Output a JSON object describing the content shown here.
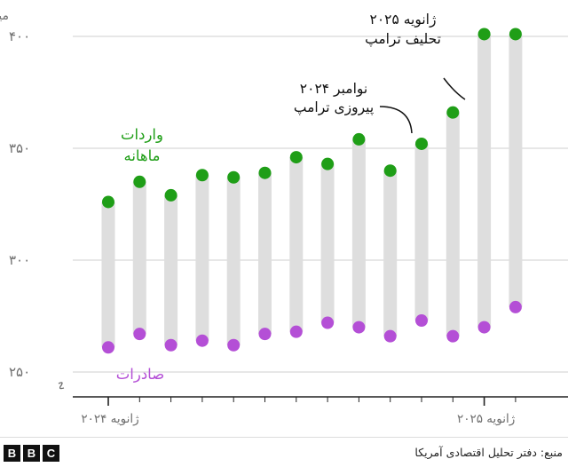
{
  "chart_data": {
    "type": "dot-range",
    "unit_label": "میلیون دلار",
    "ylim": [
      245,
      405
    ],
    "yticks": [
      {
        "value": 400,
        "label": "۴۰۰"
      },
      {
        "value": 350,
        "label": "۳۵۰"
      },
      {
        "value": 300,
        "label": "۳۰۰"
      },
      {
        "value": 250,
        "label": "۲۵۰"
      }
    ],
    "x_tick_labels": [
      {
        "index": 0,
        "label": "ژانویه ۲۰۲۴"
      },
      {
        "index": 12,
        "label": "ژانویه ۲۰۲۵"
      }
    ],
    "series": [
      {
        "name": "واردات ماهانه",
        "color": "#1f9e17",
        "values": [
          326,
          335,
          329,
          338,
          337,
          339,
          346,
          343,
          354,
          340,
          352,
          366,
          401,
          401
        ]
      },
      {
        "name": "صادرات",
        "color": "#b44fd6",
        "values": [
          261,
          267,
          262,
          264,
          262,
          267,
          268,
          272,
          270,
          266,
          273,
          266,
          270,
          279
        ]
      }
    ],
    "legend": {
      "imports_line1": "واردات",
      "imports_line2": "ماهانه",
      "exports": "صادرات"
    },
    "annotations": [
      {
        "id": "election",
        "line1": "نوامبر ۲۰۲۴",
        "line2": "پیروزی ترامپ"
      },
      {
        "id": "inauguration",
        "line1": "ژانویه ۲۰۲۵",
        "line2": "تحلیف ترامپ"
      }
    ]
  },
  "footer": {
    "logo_letters": [
      "B",
      "B",
      "C"
    ],
    "source": "منبع: دفتر تحلیل اقتصادی آمریکا"
  },
  "colors": {
    "bar": "#dedede",
    "grid": "#cfcfcf",
    "axis": "#222222",
    "tick_text": "#6e6e6e"
  }
}
